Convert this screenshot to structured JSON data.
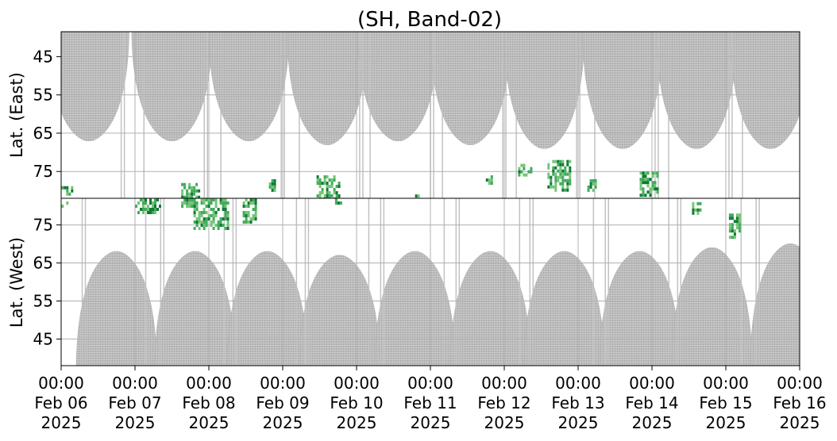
{
  "chart_data": {
    "type": "heatmap",
    "title": "(SH, Band-02)",
    "x_ticks": [
      {
        "time": "00:00",
        "date": "Feb 06",
        "year": "2025"
      },
      {
        "time": "00:00",
        "date": "Feb 07",
        "year": "2025"
      },
      {
        "time": "00:00",
        "date": "Feb 08",
        "year": "2025"
      },
      {
        "time": "00:00",
        "date": "Feb 09",
        "year": "2025"
      },
      {
        "time": "00:00",
        "date": "Feb 10",
        "year": "2025"
      },
      {
        "time": "00:00",
        "date": "Feb 11",
        "year": "2025"
      },
      {
        "time": "00:00",
        "date": "Feb 12",
        "year": "2025"
      },
      {
        "time": "00:00",
        "date": "Feb 13",
        "year": "2025"
      },
      {
        "time": "00:00",
        "date": "Feb 14",
        "year": "2025"
      },
      {
        "time": "00:00",
        "date": "Feb 15",
        "year": "2025"
      },
      {
        "time": "00:00",
        "date": "Feb 16",
        "year": "2025"
      }
    ],
    "xlim": [
      "2025-02-06 00:00",
      "2025-02-16 00:00"
    ],
    "grid": true,
    "colors": {
      "no_data": "#b4b4b4",
      "activity_light": "#74c476",
      "activity_mid": "#41ab5d",
      "activity_dark": "#0f7a35",
      "grid": "#b0b0b0"
    },
    "panels": [
      {
        "name": "east",
        "ylabel": "Lat. (East)",
        "yticks": [
          45,
          55,
          65,
          75
        ],
        "ylim": [
          38.5,
          82
        ],
        "y_direction": "increasing downward",
        "no_data_arcs": [
          {
            "center": "2025-02-06 09:00",
            "extends_to": 67
          },
          {
            "center": "2025-02-07 12:00",
            "extends_to": 67
          },
          {
            "center": "2025-02-08 13:00",
            "extends_to": 67
          },
          {
            "center": "2025-02-09 14:30",
            "extends_to": 68
          },
          {
            "center": "2025-02-10 13:30",
            "extends_to": 67
          },
          {
            "center": "2025-02-11 13:00",
            "extends_to": 68
          },
          {
            "center": "2025-02-12 13:00",
            "extends_to": 69
          },
          {
            "center": "2025-02-13 14:30",
            "extends_to": 69
          },
          {
            "center": "2025-02-14 14:30",
            "extends_to": 69
          },
          {
            "center": "2025-02-15 14:30",
            "extends_to": 69
          }
        ],
        "activity": [
          {
            "t_start": "2025-02-06 00:05",
            "t_end": "2025-02-06 03:30",
            "lat_min": 78,
            "lat_max": 81
          },
          {
            "t_start": "2025-02-07 15:00",
            "t_end": "2025-02-07 21:00",
            "lat_min": 78,
            "lat_max": 82
          },
          {
            "t_start": "2025-02-08 19:30",
            "t_end": "2025-02-08 22:00",
            "lat_min": 77,
            "lat_max": 80
          },
          {
            "t_start": "2025-02-09 11:00",
            "t_end": "2025-02-09 18:00",
            "lat_min": 76,
            "lat_max": 82
          },
          {
            "t_start": "2025-02-10 19:00",
            "t_end": "2025-02-10 21:00",
            "lat_min": 81,
            "lat_max": 82
          },
          {
            "t_start": "2025-02-11 18:00",
            "t_end": "2025-02-11 20:00",
            "lat_min": 76,
            "lat_max": 78
          },
          {
            "t_start": "2025-02-12 04:30",
            "t_end": "2025-02-12 09:00",
            "lat_min": 73,
            "lat_max": 76
          },
          {
            "t_start": "2025-02-12 14:00",
            "t_end": "2025-02-12 21:00",
            "lat_min": 72,
            "lat_max": 80
          },
          {
            "t_start": "2025-02-13 03:00",
            "t_end": "2025-02-13 06:00",
            "lat_min": 77,
            "lat_max": 80
          },
          {
            "t_start": "2025-02-13 20:00",
            "t_end": "2025-02-14 02:00",
            "lat_min": 75,
            "lat_max": 81
          }
        ]
      },
      {
        "name": "west",
        "ylabel": "Lat. (West)",
        "yticks": [
          75,
          65,
          55,
          45
        ],
        "ylim": [
          82,
          38
        ],
        "y_direction": "decreasing downward",
        "no_data_arcs": [
          {
            "center": "2025-02-06 18:00",
            "extends_to": 68
          },
          {
            "center": "2025-02-07 19:30",
            "extends_to": 68
          },
          {
            "center": "2025-02-08 19:00",
            "extends_to": 68
          },
          {
            "center": "2025-02-09 18:30",
            "extends_to": 67
          },
          {
            "center": "2025-02-10 19:00",
            "extends_to": 68
          },
          {
            "center": "2025-02-11 19:30",
            "extends_to": 68
          },
          {
            "center": "2025-02-12 19:30",
            "extends_to": 68
          },
          {
            "center": "2025-02-13 20:00",
            "extends_to": 68
          },
          {
            "center": "2025-02-14 19:30",
            "extends_to": 69
          },
          {
            "center": "2025-02-15 21:00",
            "extends_to": 70
          }
        ],
        "activity": [
          {
            "t_start": "2025-02-06 00:05",
            "t_end": "2025-02-06 02:00",
            "lat_min": 80,
            "lat_max": 82
          },
          {
            "t_start": "2025-02-07 00:00",
            "t_end": "2025-02-07 08:00",
            "lat_min": 78,
            "lat_max": 82
          },
          {
            "t_start": "2025-02-07 15:00",
            "t_end": "2025-02-07 20:00",
            "lat_min": 80,
            "lat_max": 82
          },
          {
            "t_start": "2025-02-07 19:00",
            "t_end": "2025-02-08 06:00",
            "lat_min": 74,
            "lat_max": 82
          },
          {
            "t_start": "2025-02-08 11:00",
            "t_end": "2025-02-08 15:00",
            "lat_min": 76,
            "lat_max": 82
          },
          {
            "t_start": "2025-02-09 17:00",
            "t_end": "2025-02-09 19:00",
            "lat_min": 81,
            "lat_max": 82
          },
          {
            "t_start": "2025-02-14 13:00",
            "t_end": "2025-02-14 15:30",
            "lat_min": 78,
            "lat_max": 81
          },
          {
            "t_start": "2025-02-15 01:00",
            "t_end": "2025-02-15 04:30",
            "lat_min": 72,
            "lat_max": 78
          }
        ]
      }
    ]
  }
}
